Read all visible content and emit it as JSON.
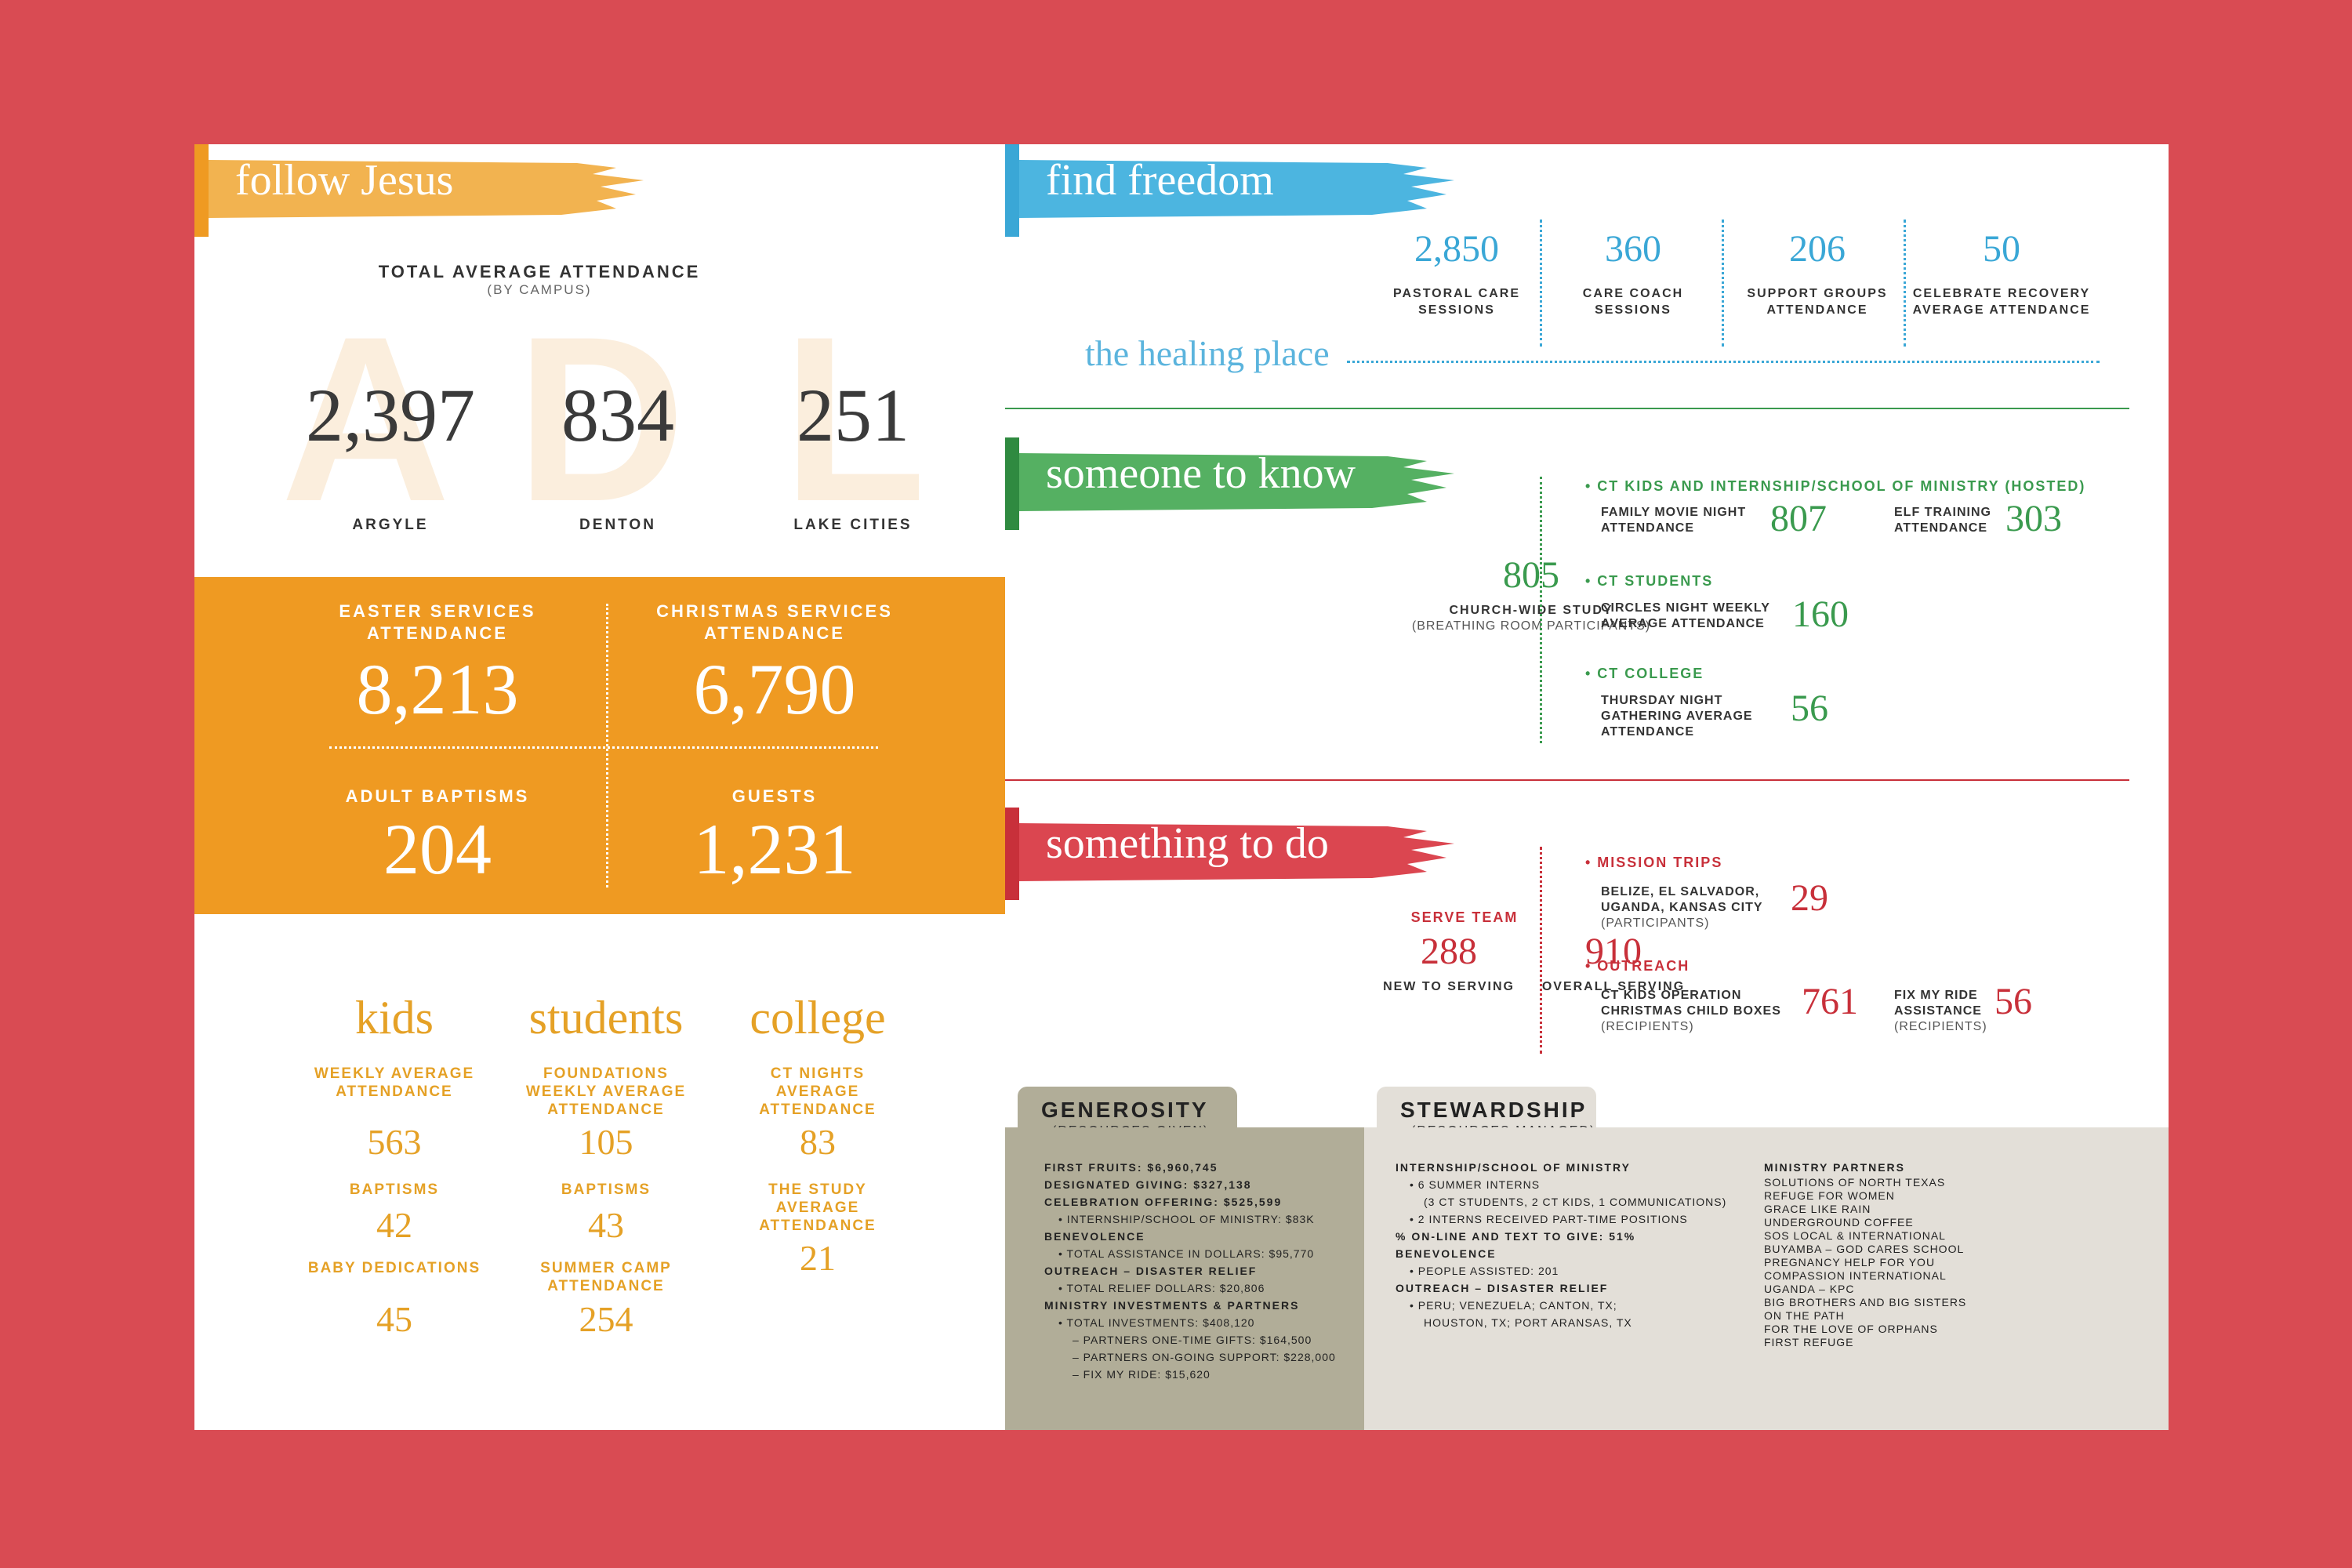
{
  "follow": {
    "title": "follow Jesus",
    "total_label": "TOTAL AVERAGE ATTENDANCE",
    "total_sub": "(BY CAMPUS)",
    "campuses": [
      {
        "letter": "A",
        "value": "2,397",
        "name": "ARGYLE"
      },
      {
        "letter": "D",
        "value": "834",
        "name": "DENTON"
      },
      {
        "letter": "L",
        "value": "251",
        "name": "LAKE CITIES"
      }
    ],
    "box": {
      "easter_label": "EASTER SERVICES ATTENDANCE",
      "easter_value": "8,213",
      "christmas_label": "CHRISTMAS SERVICES ATTENDANCE",
      "christmas_value": "6,790",
      "baptisms_label": "ADULT BAPTISMS",
      "baptisms_value": "204",
      "guests_label": "GUESTS",
      "guests_value": "1,231"
    },
    "kids": {
      "title": "kids",
      "l1": "WEEKLY AVERAGE ATTENDANCE",
      "v1": "563",
      "l2": "BAPTISMS",
      "v2": "42",
      "l3": "BABY DEDICATIONS",
      "v3": "45"
    },
    "students": {
      "title": "students",
      "l1": "FOUNDATIONS WEEKLY AVERAGE ATTENDANCE",
      "v1": "105",
      "l2": "BAPTISMS",
      "v2": "43",
      "l3": "SUMMER CAMP ATTENDANCE",
      "v3": "254"
    },
    "college": {
      "title": "college",
      "l1": "CT NIGHTS AVERAGE ATTENDANCE",
      "v1": "83",
      "l2": "THE STUDY AVERAGE ATTENDANCE",
      "v2": "21"
    }
  },
  "freedom": {
    "title": "find freedom",
    "subtitle": "the healing place",
    "stats": [
      {
        "value": "2,850",
        "label": "PASTORAL CARE SESSIONS"
      },
      {
        "value": "360",
        "label": "CARE COACH SESSIONS"
      },
      {
        "value": "206",
        "label": "SUPPORT GROUPS ATTENDANCE"
      },
      {
        "value": "50",
        "label": "CELEBRATE RECOVERY AVERAGE ATTENDANCE"
      }
    ]
  },
  "know": {
    "title": "someone to know",
    "study_value": "805",
    "study_label": "CHURCH-WIDE STUDY",
    "study_sub": "(BREATHING ROOM PARTICIPANTS)",
    "kids_head": "• CT KIDS AND INTERNSHIP/SCHOOL OF MINISTRY (HOSTED)",
    "movie_label": "FAMILY MOVIE NIGHT ATTENDANCE",
    "movie_value": "807",
    "elf_label": "ELF TRAINING ATTENDANCE",
    "elf_value": "303",
    "students_head": "• CT STUDENTS",
    "circles_label": "CIRCLES NIGHT WEEKLY AVERAGE ATTENDANCE",
    "circles_value": "160",
    "college_head": "• CT COLLEGE",
    "thursday_label": "THURSDAY NIGHT GATHERING AVERAGE ATTENDANCE",
    "thursday_value": "56"
  },
  "todo": {
    "title": "something to do",
    "serve_head": "SERVE TEAM",
    "new_value": "288",
    "new_label": "NEW TO SERVING",
    "overall_value": "910",
    "overall_label": "OVERALL SERVING",
    "mission_head": "• MISSION TRIPS",
    "mission_label": "BELIZE, EL SALVADOR, UGANDA, KANSAS CITY",
    "mission_sub": "(PARTICIPANTS)",
    "mission_value": "29",
    "outreach_head": "• OUTREACH",
    "occ_label": "CT KIDS OPERATION CHRISTMAS CHILD BOXES",
    "occ_sub": "(RECIPIENTS)",
    "occ_value": "761",
    "fix_label": "FIX MY RIDE ASSISTANCE",
    "fix_sub": "(RECIPIENTS)",
    "fix_value": "56"
  },
  "generosity": {
    "title": "GENEROSITY",
    "sub": "(RESOURCES GIVEN)",
    "lines": [
      {
        "t": "FIRST FRUITS: $6,960,745",
        "b": true,
        "i": 0
      },
      {
        "t": "DESIGNATED GIVING: $327,138",
        "b": true,
        "i": 0
      },
      {
        "t": "CELEBRATION OFFERING: $525,599",
        "b": true,
        "i": 0
      },
      {
        "t": "•  INTERNSHIP/SCHOOL OF MINISTRY: $83K",
        "b": false,
        "i": 1
      },
      {
        "t": "BENEVOLENCE",
        "b": true,
        "i": 0
      },
      {
        "t": "•  TOTAL ASSISTANCE IN DOLLARS:  $95,770",
        "b": false,
        "i": 1
      },
      {
        "t": "OUTREACH – DISASTER RELIEF",
        "b": true,
        "i": 0
      },
      {
        "t": "•  TOTAL RELIEF DOLLARS: $20,806",
        "b": false,
        "i": 1
      },
      {
        "t": "MINISTRY INVESTMENTS & PARTNERS",
        "b": true,
        "i": 0
      },
      {
        "t": "•  TOTAL INVESTMENTS: $408,120",
        "b": false,
        "i": 1
      },
      {
        "t": "–  PARTNERS ONE-TIME GIFTS: $164,500",
        "b": false,
        "i": 2
      },
      {
        "t": "–  PARTNERS ON-GOING SUPPORT: $228,000",
        "b": false,
        "i": 2
      },
      {
        "t": "–  FIX MY RIDE: $15,620",
        "b": false,
        "i": 2
      }
    ]
  },
  "stewardship": {
    "title": "STEWARDSHIP",
    "sub": "(RESOURCES MANAGED)",
    "lines": [
      {
        "t": "INTERNSHIP/SCHOOL OF MINISTRY",
        "b": true,
        "i": 0
      },
      {
        "t": "•  6 SUMMER INTERNS",
        "b": false,
        "i": 1
      },
      {
        "t": "(3 CT STUDENTS, 2 CT KIDS, 1 COMMUNICATIONS)",
        "b": false,
        "i": 2
      },
      {
        "t": "•  2 INTERNS RECEIVED PART-TIME POSITIONS",
        "b": false,
        "i": 1
      },
      {
        "t": "% ON-LINE AND TEXT TO GIVE: 51%",
        "b": true,
        "i": 0
      },
      {
        "t": "BENEVOLENCE",
        "b": true,
        "i": 0
      },
      {
        "t": "•  PEOPLE ASSISTED: 201",
        "b": false,
        "i": 1
      },
      {
        "t": "OUTREACH – DISASTER RELIEF",
        "b": true,
        "i": 0
      },
      {
        "t": "•  PERU; VENEZUELA; CANTON, TX;",
        "b": false,
        "i": 1
      },
      {
        "t": "HOUSTON, TX; PORT ARANSAS, TX",
        "b": false,
        "i": 2
      }
    ],
    "partners_head": "MINISTRY PARTNERS",
    "partners": [
      "SOLUTIONS OF NORTH TEXAS",
      "REFUGE FOR WOMEN",
      "GRACE LIKE RAIN",
      "UNDERGROUND COFFEE",
      "SOS LOCAL & INTERNATIONAL",
      "BUYAMBA – GOD CARES SCHOOL",
      "PREGNANCY HELP FOR YOU",
      "COMPASSION INTERNATIONAL",
      "UGANDA – KPC",
      "BIG BROTHERS AND BIG SISTERS",
      "ON THE PATH",
      "FOR THE LOVE OF ORPHANS",
      "FIRST REFUGE"
    ]
  },
  "colors": {
    "background": "#d94b53",
    "orange": "#ef9a22",
    "blue": "#3aa7d6",
    "green": "#3a9a4e",
    "red": "#c8303a",
    "gold_text": "#e5a126"
  }
}
